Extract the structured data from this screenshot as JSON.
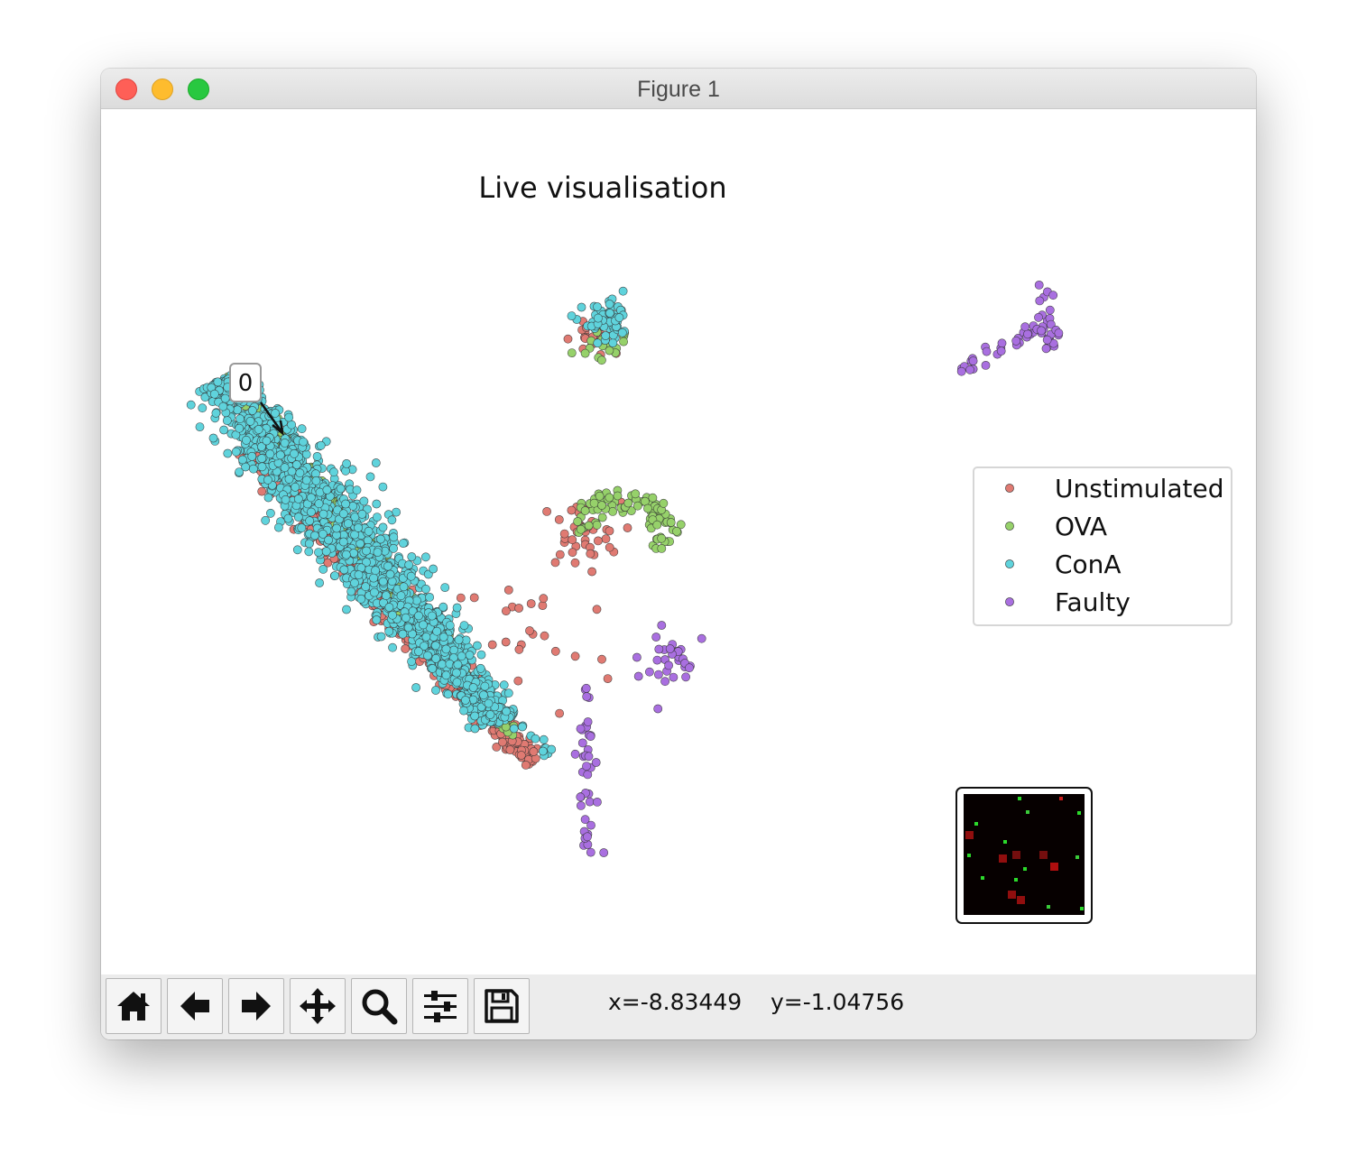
{
  "window": {
    "title": "Figure 1"
  },
  "toolbar": {
    "tools": [
      {
        "name": "home-button",
        "icon": "home-icon"
      },
      {
        "name": "back-button",
        "icon": "arrow-left-icon"
      },
      {
        "name": "forward-button",
        "icon": "arrow-right-icon"
      },
      {
        "name": "pan-button",
        "icon": "move-icon"
      },
      {
        "name": "zoom-button",
        "icon": "magnifier-icon"
      },
      {
        "name": "configure-subplots-button",
        "icon": "sliders-icon"
      },
      {
        "name": "save-button",
        "icon": "floppy-icon"
      }
    ],
    "x_readout": "x=-8.83449",
    "y_readout": "y=-1.04756"
  },
  "annotation": {
    "label": "0"
  },
  "chart_data": {
    "type": "scatter",
    "title": "Live visualisation",
    "xlabel": "",
    "ylabel": "",
    "axes_visible": false,
    "grid": false,
    "legend": {
      "placement": "center-right",
      "entries": [
        "Unstimulated",
        "OVA",
        "ConA",
        "Faulty"
      ]
    },
    "colors": {
      "Unstimulated": "#e07a72",
      "OVA": "#96d16a",
      "ConA": "#5fd3dc",
      "Faulty": "#a96fe0"
    },
    "series": [
      {
        "name": "Unstimulated",
        "clusters": [
          {
            "kind": "band",
            "from": [
              1.8,
              7.2
            ],
            "to": [
              8.6,
              -2.5
            ],
            "width": 0.55,
            "offset": -0.55,
            "count": 700
          },
          {
            "kind": "blob",
            "center": [
              10.5,
              10.8
            ],
            "spread": [
              0.25,
              0.25
            ],
            "count": 25
          },
          {
            "kind": "blob",
            "center": [
              10.2,
              4.8
            ],
            "spread": [
              0.5,
              0.5
            ],
            "count": 40
          },
          {
            "kind": "blob",
            "center": [
              9.0,
              1.5
            ],
            "spread": [
              1.0,
              1.2
            ],
            "count": 25
          }
        ]
      },
      {
        "name": "OVA",
        "clusters": [
          {
            "kind": "band",
            "from": [
              1.5,
              9.6
            ],
            "to": [
              8.4,
              -1.5
            ],
            "width": 0.35,
            "offset": -0.25,
            "count": 350
          },
          {
            "kind": "arc",
            "center": [
              11.3,
              5.0
            ],
            "radius": 1.2,
            "count": 90
          },
          {
            "kind": "blob",
            "center": [
              10.8,
              10.6
            ],
            "spread": [
              0.3,
              0.25
            ],
            "count": 20
          }
        ]
      },
      {
        "name": "ConA",
        "clusters": [
          {
            "kind": "band",
            "from": [
              1.6,
              9.7
            ],
            "to": [
              8.5,
              -0.8
            ],
            "width": 1.0,
            "offset": 0.25,
            "count": 1500
          },
          {
            "kind": "blob",
            "center": [
              10.9,
              11.3
            ],
            "spread": [
              0.3,
              0.3
            ],
            "count": 60
          },
          {
            "kind": "line",
            "from": [
              8.6,
              -0.8
            ],
            "to": [
              9.4,
              -1.8
            ],
            "count": 12
          }
        ]
      },
      {
        "name": "Faulty",
        "clusters": [
          {
            "kind": "line",
            "from": [
              19.5,
              9.9
            ],
            "to": [
              21.5,
              11.2
            ],
            "count": 30
          },
          {
            "kind": "line",
            "from": [
              21.5,
              12.3
            ],
            "to": [
              21.7,
              10.3
            ],
            "count": 25
          },
          {
            "kind": "blob",
            "center": [
              12.5,
              1.0
            ],
            "spread": [
              0.35,
              0.45
            ],
            "count": 30
          },
          {
            "kind": "line",
            "from": [
              10.3,
              0.0
            ],
            "to": [
              10.4,
              -5.1
            ],
            "count": 40
          }
        ]
      }
    ],
    "xlim": [
      -1.0,
      26.0
    ],
    "ylim": [
      -6.5,
      14.0
    ]
  }
}
